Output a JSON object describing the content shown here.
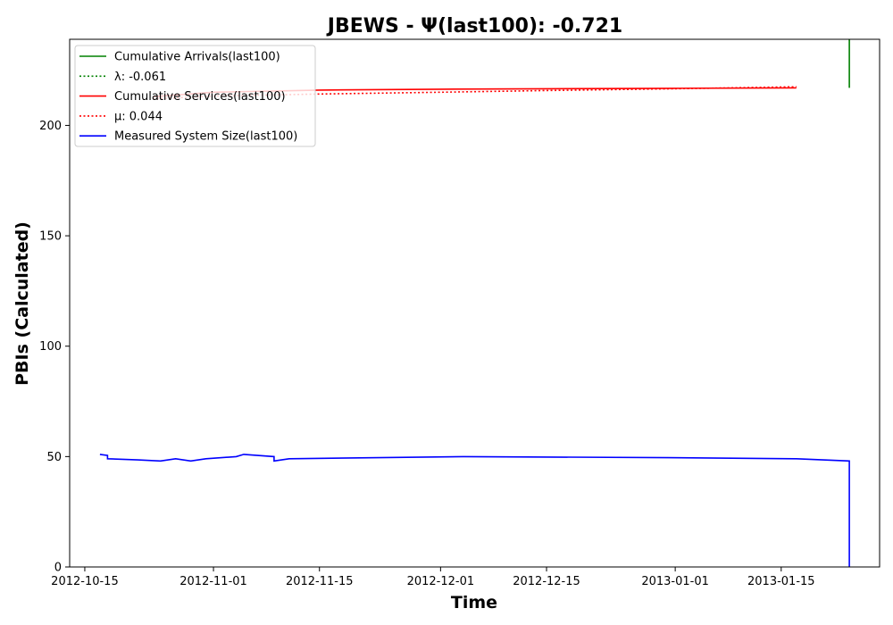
{
  "chart_data": {
    "type": "line",
    "title": "JBEWS -  Ψ(last100): -0.721",
    "xlabel": "Time",
    "ylabel": "PBIs (Calculated)",
    "xlim": [
      "2012-10-13",
      "2013-01-28"
    ],
    "ylim": [
      0,
      239
    ],
    "x_ticks": [
      "2012-10-15",
      "2012-11-01",
      "2012-11-15",
      "2012-12-01",
      "2012-12-15",
      "2013-01-01",
      "2013-01-15"
    ],
    "y_ticks": [
      0,
      50,
      100,
      150,
      200
    ],
    "legend_placement": "top-left",
    "grid": false,
    "series": [
      {
        "name": "Cumulative Arrivals(last100)",
        "color": "#008000",
        "style": "solid",
        "points": [
          [
            "2013-01-24",
            217
          ],
          [
            "2013-01-24",
            239
          ]
        ]
      },
      {
        "name": "λ: -0.061",
        "color": "#008000",
        "style": "dotted",
        "points": []
      },
      {
        "name": "Cumulative Services(last100)",
        "color": "#ff0000",
        "style": "solid",
        "points": [
          [
            "2012-10-24",
            213
          ],
          [
            "2012-11-01",
            215
          ],
          [
            "2012-11-15",
            216
          ],
          [
            "2012-12-01",
            216.4
          ],
          [
            "2012-12-15",
            216.6
          ],
          [
            "2013-01-01",
            216.8
          ],
          [
            "2013-01-17",
            217
          ]
        ]
      },
      {
        "name": "μ: 0.044",
        "color": "#ff0000",
        "style": "dotted",
        "points": [
          [
            "2012-10-24",
            212
          ],
          [
            "2012-11-01",
            213.3
          ],
          [
            "2012-11-15",
            214.2
          ],
          [
            "2012-12-01",
            215
          ],
          [
            "2012-12-15",
            215.8
          ],
          [
            "2013-01-01",
            216.6
          ],
          [
            "2013-01-17",
            217.5
          ]
        ]
      },
      {
        "name": "Measured System Size(last100)",
        "color": "#0000ff",
        "style": "solid",
        "points": [
          [
            "2012-10-17",
            51
          ],
          [
            "2012-10-18",
            50.5
          ],
          [
            "2012-10-18",
            49
          ],
          [
            "2012-10-22",
            48.5
          ],
          [
            "2012-10-25",
            48
          ],
          [
            "2012-10-27",
            49
          ],
          [
            "2012-10-29",
            48
          ],
          [
            "2012-10-31",
            49
          ],
          [
            "2012-11-04",
            50
          ],
          [
            "2012-11-05",
            51
          ],
          [
            "2012-11-09",
            50
          ],
          [
            "2012-11-09",
            48
          ],
          [
            "2012-11-10",
            48.5
          ],
          [
            "2012-11-11",
            49
          ],
          [
            "2012-12-04",
            50
          ],
          [
            "2012-12-31",
            49.5
          ],
          [
            "2013-01-17",
            49
          ],
          [
            "2013-01-24",
            48
          ],
          [
            "2013-01-24",
            0
          ]
        ]
      }
    ]
  }
}
